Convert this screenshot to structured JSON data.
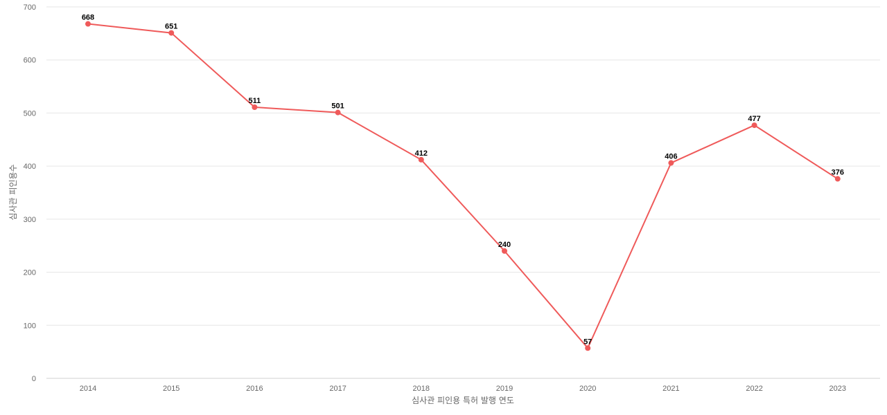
{
  "chart_data": {
    "type": "line",
    "title": "",
    "xlabel": "심사관 피인용 특허 발행 연도",
    "ylabel": "심사관 피인용수",
    "categories": [
      "2014",
      "2015",
      "2016",
      "2017",
      "2018",
      "2019",
      "2020",
      "2021",
      "2022",
      "2023"
    ],
    "series": [
      {
        "values": [
          668,
          651,
          511,
          501,
          412,
          240,
          57,
          406,
          477,
          376
        ],
        "color": "#ef5a5a"
      }
    ],
    "ylim": [
      0,
      700
    ],
    "yticks": [
      0,
      100,
      200,
      300,
      400,
      500,
      600,
      700
    ],
    "grid": true,
    "data_labels": true,
    "legend": "none"
  }
}
